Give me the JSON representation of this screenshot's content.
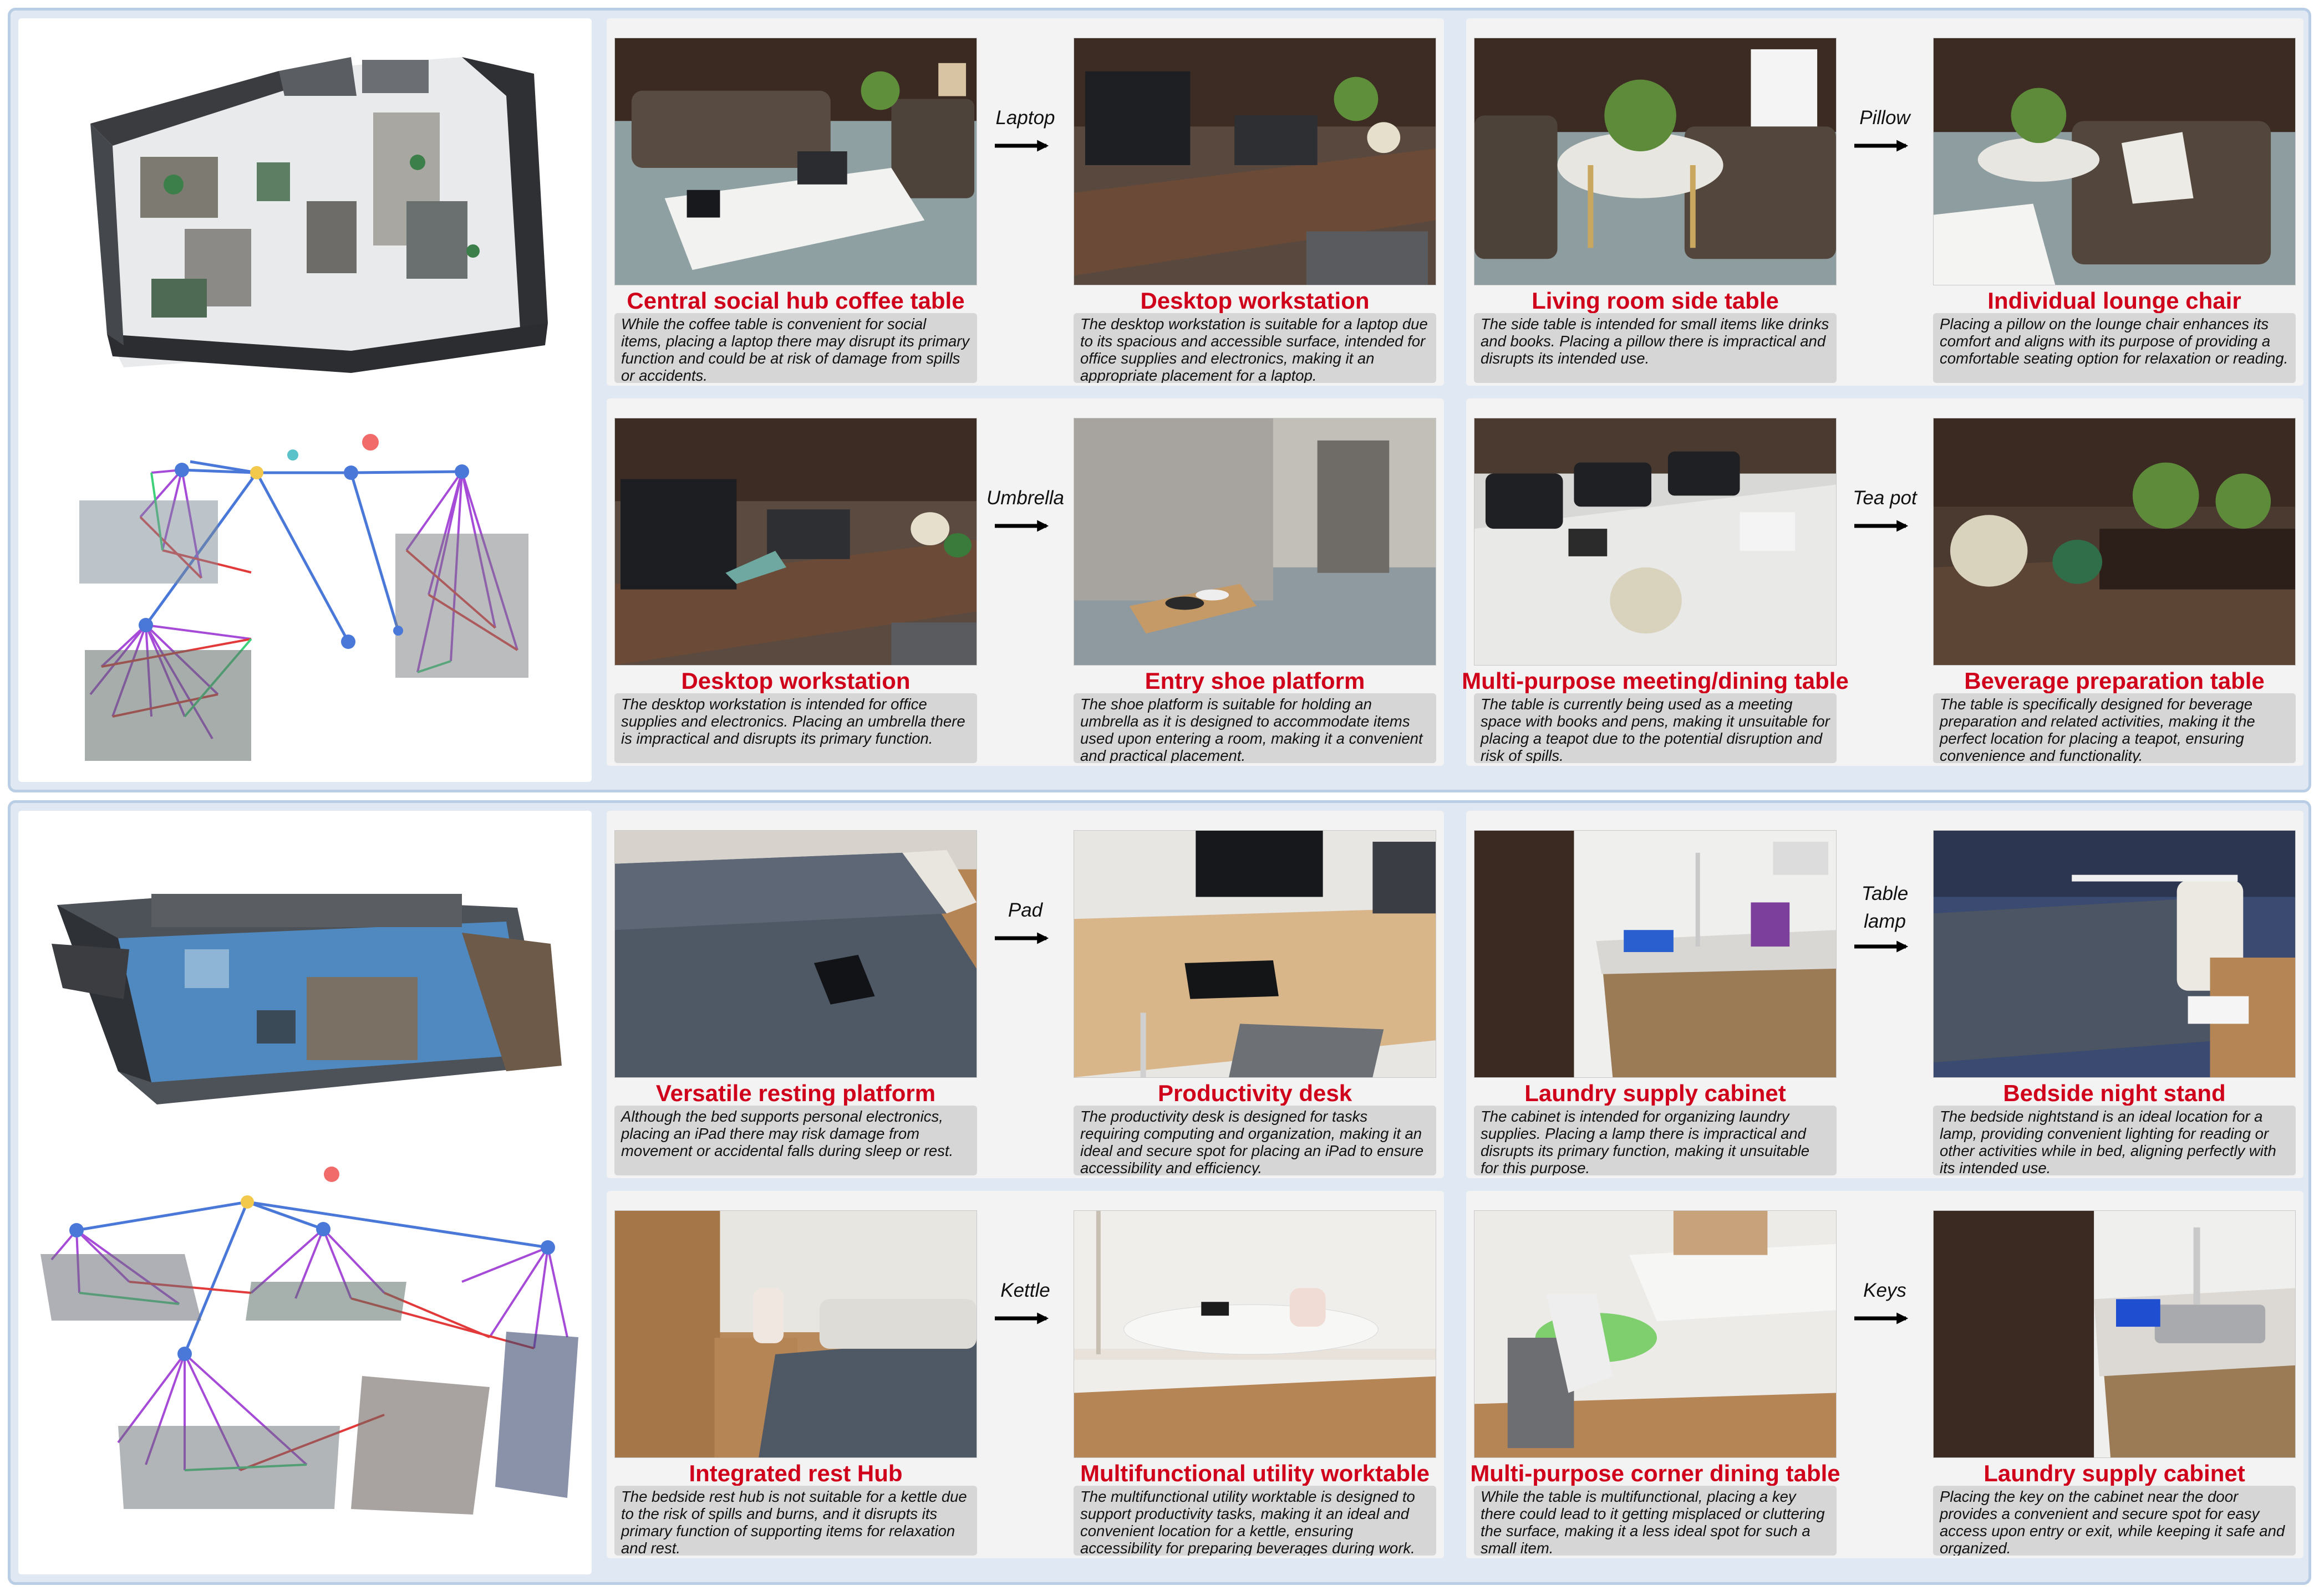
{
  "scenes": [
    {
      "pairs": [
        {
          "object": "Laptop",
          "source": {
            "title": "Central social hub coffee table",
            "desc": "While the coffee table is convenient for social items, placing a laptop there may disrupt its primary function and could be at risk of damage from spills or accidents."
          },
          "target": {
            "title": "Desktop workstation",
            "desc": "The desktop workstation is suitable for a laptop due to its spacious and accessible surface, intended for office supplies and electronics, making it an appropriate placement for a laptop."
          }
        },
        {
          "object": "Pillow",
          "source": {
            "title": "Living room side table",
            "desc": "The side table is intended for small items like drinks and books. Placing a pillow there is impractical and disrupts its intended use."
          },
          "target": {
            "title": "Individual lounge chair",
            "desc": "Placing a pillow on the lounge chair enhances its comfort and aligns with its purpose of providing a comfortable seating option for relaxation or reading."
          }
        },
        {
          "object": "Umbrella",
          "source": {
            "title": "Desktop workstation",
            "desc": "The desktop workstation is intended for office supplies and electronics. Placing an umbrella there is impractical and disrupts its primary function."
          },
          "target": {
            "title": "Entry shoe platform",
            "desc": "The shoe platform is suitable for holding an umbrella as it is designed to accommodate items used upon entering a room, making it a convenient and practical placement."
          }
        },
        {
          "object": "Tea pot",
          "source": {
            "title": "Multi-purpose meeting/dining table",
            "desc": "The table is currently being used as a meeting space with books and pens, making it unsuitable for placing a teapot due to the potential disruption and risk of spills."
          },
          "target": {
            "title": "Beverage preparation table",
            "desc": "The table is specifically designed for beverage preparation and related activities, making it the perfect location for placing a teapot, ensuring convenience and functionality."
          }
        }
      ]
    },
    {
      "pairs": [
        {
          "object": "Pad",
          "source": {
            "title": "Versatile resting platform",
            "desc": "Although the bed supports personal electronics, placing an iPad there may risk damage from movement or accidental falls during sleep or rest."
          },
          "target": {
            "title": "Productivity desk",
            "desc": "The productivity desk is designed for tasks requiring computing and organization, making it an ideal and secure spot for placing an iPad to ensure accessibility and efficiency."
          }
        },
        {
          "object": "Table lamp",
          "source": {
            "title": "Laundry supply cabinet",
            "desc": "The cabinet is intended for organizing laundry supplies. Placing a lamp there is impractical and disrupts its primary function, making it unsuitable for this purpose."
          },
          "target": {
            "title": "Bedside night stand",
            "desc": "The bedside nightstand is an ideal location for a lamp, providing convenient lighting for reading or other activities while in bed, aligning perfectly with its intended use."
          }
        },
        {
          "object": "Kettle",
          "source": {
            "title": "Integrated rest Hub",
            "desc": "The bedside rest hub is not suitable for a kettle due to the risk of spills and burns, and it disrupts its primary function of supporting items for relaxation and rest."
          },
          "target": {
            "title": "Multifunctional utility worktable",
            "desc": "The multifunctional utility worktable is designed to support productivity tasks, making it an ideal and convenient location for a kettle, ensuring accessibility for preparing beverages during work."
          }
        },
        {
          "object": "Keys",
          "source": {
            "title": "Multi-purpose corner dining table",
            "desc": "While the table is multifunctional, placing a key there could lead to it getting misplaced or cluttering the surface, making it a less ideal spot for such a small item."
          },
          "target": {
            "title": "Laundry supply cabinet",
            "desc": "Placing the key on the cabinet near the door provides a convenient and secure spot for easy access upon entry or exit, while keeping it safe and organized."
          }
        }
      ]
    }
  ]
}
